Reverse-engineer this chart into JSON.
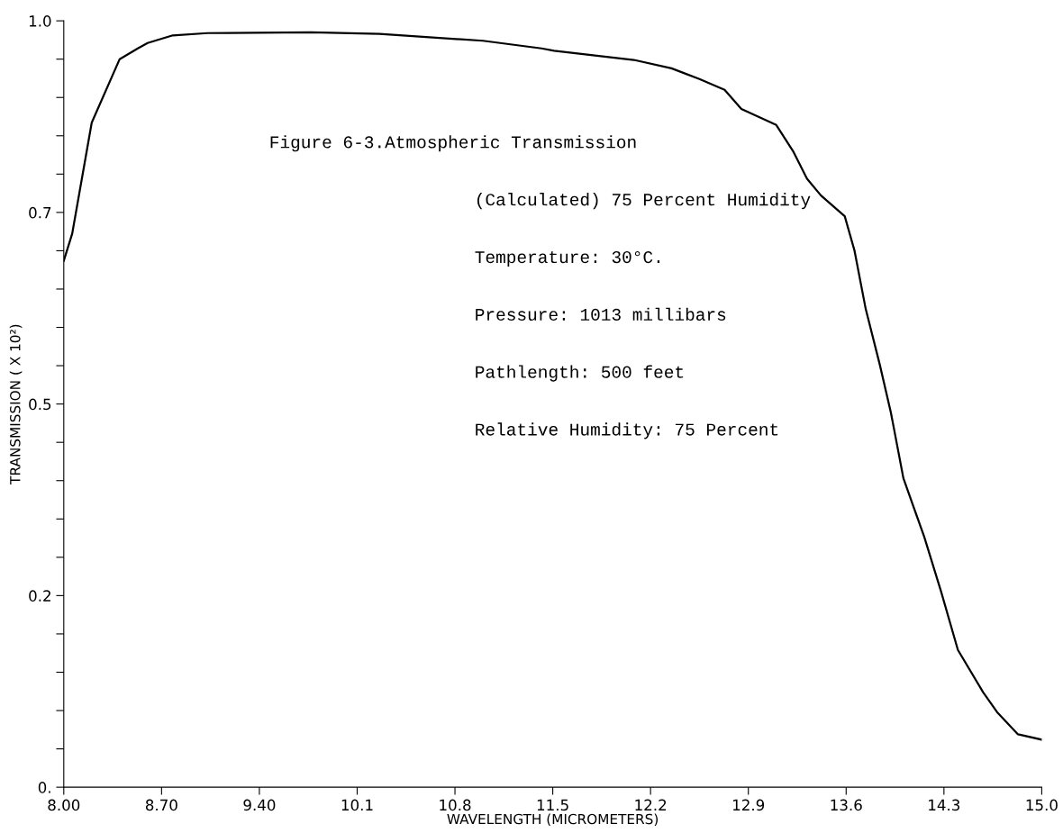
{
  "chart_data": {
    "type": "line",
    "xlabel": "WAVELENGTH (MICROMETERS)",
    "ylabel": "TRANSMISSION ( X 10²)",
    "annotations": [
      "Figure 6-3.Atmospheric Transmission",
      "(Calculated) 75 Percent Humidity",
      "Temperature: 30°C.",
      "Pressure: 1013 millibars",
      "Pathlength: 500 feet",
      "Relative Humidity: 75 Percent"
    ],
    "x": [
      8.0,
      8.06,
      8.2,
      8.4,
      8.53,
      8.6,
      8.78,
      9.03,
      9.77,
      10.26,
      11.0,
      11.42,
      11.51,
      12.08,
      12.35,
      12.55,
      12.73,
      12.85,
      13.1,
      13.22,
      13.32,
      13.42,
      13.59,
      13.66,
      13.74,
      13.84,
      13.92,
      13.94,
      14.01,
      14.16,
      14.28,
      14.4,
      14.58,
      14.68,
      14.83,
      15.0
    ],
    "series": [
      {
        "color": "#000000",
        "values": [
          0.687,
          0.722,
          0.867,
          0.95,
          0.964,
          0.971,
          0.981,
          0.984,
          0.985,
          0.983,
          0.974,
          0.964,
          0.961,
          0.949,
          0.938,
          0.924,
          0.91,
          0.885,
          0.864,
          0.83,
          0.794,
          0.772,
          0.745,
          0.7,
          0.624,
          0.552,
          0.489,
          0.47,
          0.403,
          0.326,
          0.255,
          0.179,
          0.124,
          0.098,
          0.069,
          0.062
        ]
      }
    ],
    "xlim": [
      8.0,
      15.0
    ],
    "xticks": [
      {
        "value": 8.0,
        "label": "8.00"
      },
      {
        "value": 8.7,
        "label": "8.70"
      },
      {
        "value": 9.4,
        "label": "9.40"
      },
      10.1,
      10.8,
      11.5,
      12.2,
      12.9,
      13.6,
      14.3,
      {
        "value": 15.0,
        "label": "15.0"
      }
    ],
    "ylim": [
      0,
      1.0
    ],
    "yticks": [
      {
        "value": 0,
        "label": "0."
      },
      {
        "value": 0.05,
        "label": null
      },
      {
        "value": 0.1,
        "label": null
      },
      {
        "value": 0.15,
        "label": null
      },
      {
        "value": 0.2,
        "label": null
      },
      {
        "value": 0.25,
        "label": "0.2"
      },
      {
        "value": 0.3,
        "label": null
      },
      {
        "value": 0.35,
        "label": null
      },
      {
        "value": 0.4,
        "label": null
      },
      {
        "value": 0.45,
        "label": null
      },
      {
        "value": 0.5,
        "label": "0.5"
      },
      {
        "value": 0.55,
        "label": null
      },
      {
        "value": 0.6,
        "label": null
      },
      {
        "value": 0.65,
        "label": null
      },
      {
        "value": 0.7,
        "label": null
      },
      {
        "value": 0.75,
        "label": "0.7"
      },
      {
        "value": 0.8,
        "label": null
      },
      {
        "value": 0.85,
        "label": null
      },
      {
        "value": 0.9,
        "label": null
      },
      {
        "value": 0.95,
        "label": null
      },
      {
        "value": 1.0,
        "label": "1.0"
      }
    ],
    "grid": false,
    "legend": false,
    "marker": "none",
    "line_style": "solid"
  }
}
